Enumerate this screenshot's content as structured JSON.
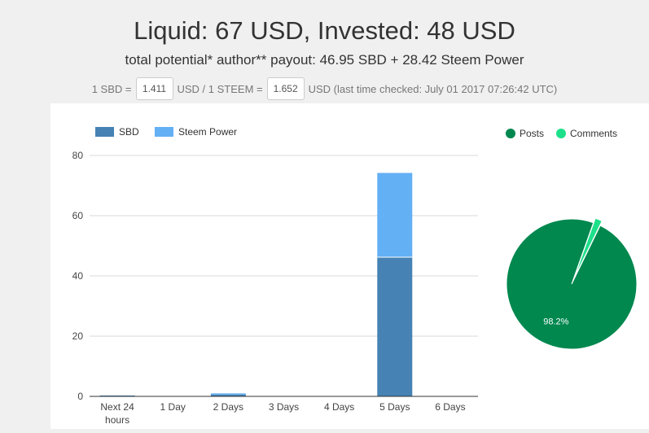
{
  "header": {
    "headline": "Liquid: 67 USD, Invested: 48 USD",
    "subline": "total potential* author** payout: 46.95 SBD + 28.42 Steem Power"
  },
  "rates": {
    "sbd_prefix": "1 SBD =",
    "sbd_value": "1.411",
    "steem_prefix": "USD / 1 STEEM =",
    "steem_value": "1.652",
    "suffix": "USD (last time checked: July 01 2017 07:26:42 UTC)"
  },
  "chart_data": [
    {
      "type": "bar",
      "stacked": true,
      "categories": [
        "Next 24 hours",
        "1 Day",
        "2 Days",
        "3 Days",
        "4 Days",
        "5 Days",
        "6 Days"
      ],
      "series": [
        {
          "name": "SBD",
          "color": "#4682b4",
          "values": [
            0.3,
            0,
            0.6,
            0,
            0,
            46.2,
            0
          ]
        },
        {
          "name": "Steem Power",
          "color": "#63b0f5",
          "values": [
            0,
            0,
            0.4,
            0,
            0,
            28.0,
            0
          ]
        }
      ],
      "ylim": [
        0,
        80
      ],
      "yticks": [
        0,
        20,
        40,
        60,
        80
      ],
      "grid": true,
      "legend": "top-left"
    },
    {
      "type": "pie",
      "labels": [
        "Posts",
        "Comments"
      ],
      "values": [
        98.2,
        1.8
      ],
      "colors": [
        "#00884f",
        "#1de08a"
      ],
      "slice_labels": [
        "98.2%",
        ""
      ],
      "legend": "top-right"
    }
  ]
}
